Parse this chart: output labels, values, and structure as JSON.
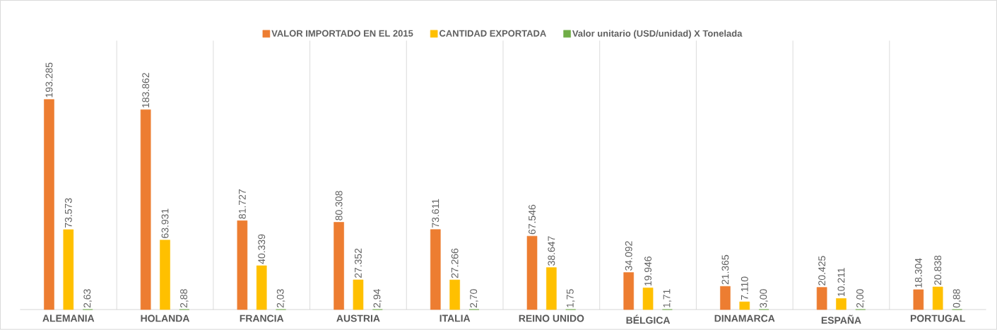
{
  "chart_data": {
    "type": "bar",
    "categories": [
      "ALEMANIA",
      "HOLANDA",
      "FRANCIA",
      "AUSTRIA",
      "ITALIA",
      "REINO UNIDO",
      "BÉLGICA",
      "DINAMARCA",
      "ESPAÑA",
      "PORTUGAL"
    ],
    "series": [
      {
        "name": "VALOR IMPORTADO EN EL 2015",
        "color": "#ed7d31",
        "values": [
          193285,
          183862,
          81727,
          80308,
          73611,
          67546,
          34092,
          21365,
          20425,
          18304
        ],
        "value_labels": [
          "193.285",
          "183.862",
          "81.727",
          "80.308",
          "73.611",
          "67.546",
          "34.092",
          "21.365",
          "20.425",
          "18.304"
        ]
      },
      {
        "name": "CANTIDAD EXPORTADA",
        "color": "#ffc000",
        "values": [
          73573,
          63931,
          40339,
          27352,
          27266,
          38647,
          19946,
          7110,
          10211,
          20838
        ],
        "value_labels": [
          "73.573",
          "63.931",
          "40.339",
          "27.352",
          "27.266",
          "38.647",
          "19.946",
          "7.110",
          "10.211",
          "20.838"
        ]
      },
      {
        "name": "Valor unitario (USD/unidad) X Tonelada",
        "color": "#70ad47",
        "values": [
          2.63,
          2.88,
          2.03,
          2.94,
          2.7,
          1.75,
          1.71,
          3.0,
          2.0,
          0.88
        ],
        "value_labels": [
          "2,63",
          "2,88",
          "2,03",
          "2,94",
          "2,70",
          "1,75",
          "1,71",
          "3,00",
          "2,00",
          "0,88"
        ]
      }
    ],
    "legend": "top",
    "grid": "x"
  }
}
